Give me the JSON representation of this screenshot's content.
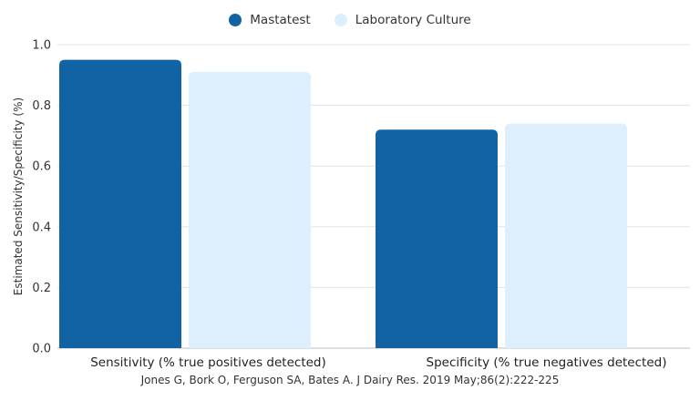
{
  "chart_data": {
    "type": "bar",
    "categories": [
      "Sensitivity (% true positives detected)",
      "Specificity (% true negatives detected)"
    ],
    "series": [
      {
        "name": "Mastatest",
        "values": [
          0.95,
          0.72
        ],
        "color": "#1163A4"
      },
      {
        "name": "Laboratory Culture",
        "values": [
          0.91,
          0.74
        ],
        "color": "#DDEEFC"
      }
    ],
    "ylabel": "Estimated Sensitivity/Specificity (%)",
    "xlabel": "",
    "ylim": [
      0,
      1.0
    ],
    "yticks": [
      "0.0",
      "0.2",
      "0.4",
      "0.6",
      "0.8",
      "1.0"
    ],
    "grid": true,
    "legend_position": "top-center"
  },
  "source": "Jones G, Bork O, Ferguson SA, Bates A. J Dairy Res. 2019 May;86(2):222-225"
}
